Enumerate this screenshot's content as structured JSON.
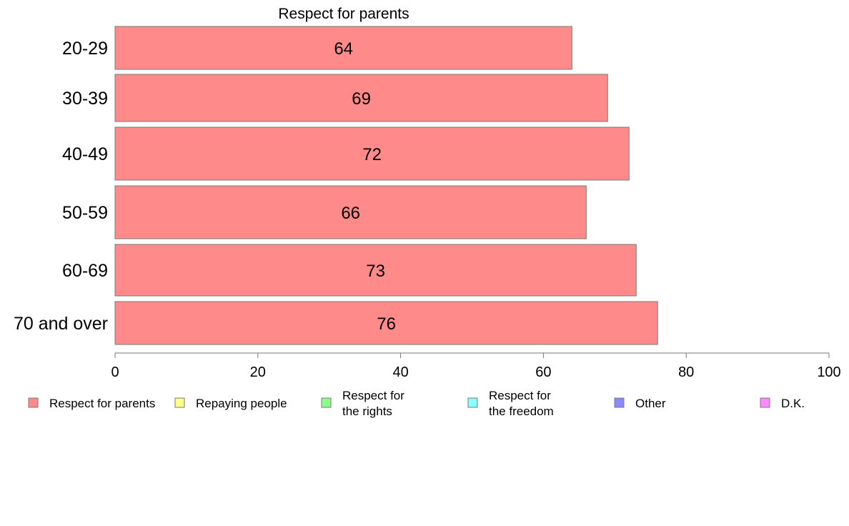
{
  "chart_data": {
    "type": "bar",
    "orientation": "horizontal",
    "title": "Respect for parents",
    "categories": [
      "20-29",
      "30-39",
      "40-49",
      "50-59",
      "60-69",
      "70 and over"
    ],
    "series": [
      {
        "name": "Respect for parents",
        "color": "#ff8a8a",
        "values": [
          64,
          69,
          72,
          66,
          73,
          76
        ]
      }
    ],
    "value_labels": [
      "64",
      "69",
      "72",
      "66",
      "73",
      "76"
    ],
    "xlim": [
      0,
      100
    ],
    "xticks": [
      0,
      20,
      40,
      60,
      80,
      100
    ],
    "xtick_labels": [
      "0",
      "20",
      "40",
      "60",
      "80",
      "100"
    ],
    "grid": false,
    "legend_position": "bottom",
    "legend": [
      {
        "lines": [
          "Respect for parents"
        ],
        "color": "#ff8a8a"
      },
      {
        "lines": [
          "Repaying people"
        ],
        "color": "#ffff8a"
      },
      {
        "lines": [
          "Respect for",
          "the rights"
        ],
        "color": "#8aff8a"
      },
      {
        "lines": [
          "Respect for",
          "the freedom"
        ],
        "color": "#8affff"
      },
      {
        "lines": [
          "Other"
        ],
        "color": "#8a8aff"
      },
      {
        "lines": [
          "D.K."
        ],
        "color": "#ff8aff"
      }
    ]
  }
}
